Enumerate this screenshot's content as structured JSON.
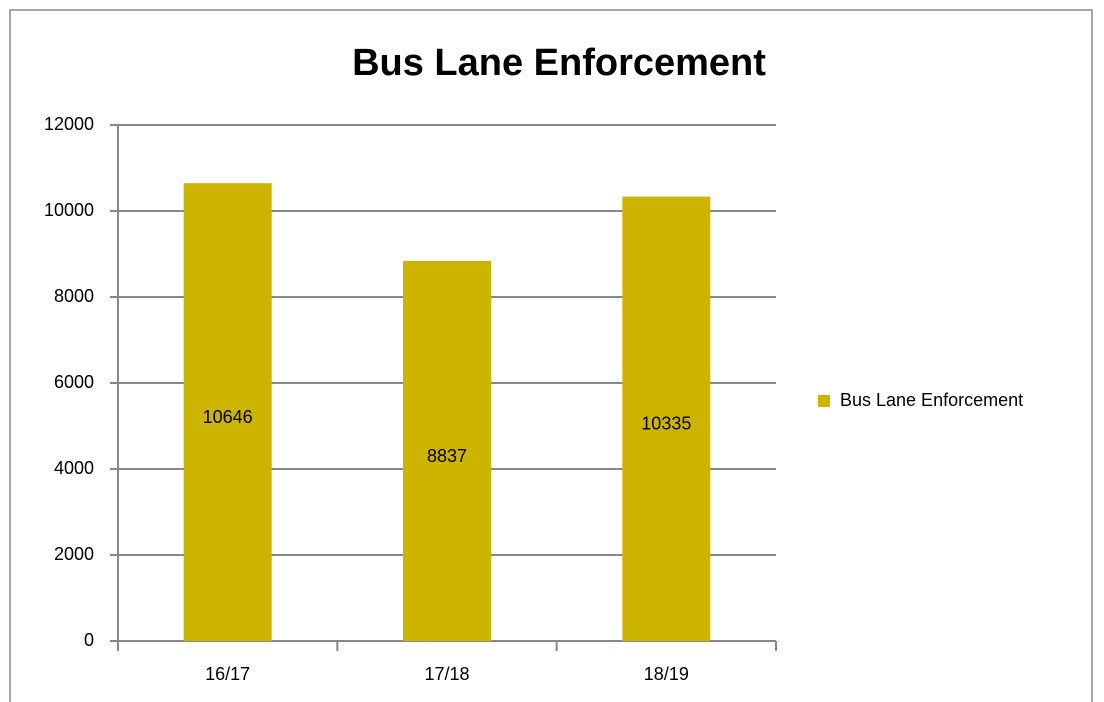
{
  "chart_data": {
    "type": "bar",
    "title": "Bus Lane Enforcement",
    "categories": [
      "16/17",
      "17/18",
      "18/19"
    ],
    "series": [
      {
        "name": "Bus Lane Enforcement",
        "color": "#ccb400",
        "values": [
          10646,
          8837,
          10335
        ]
      }
    ],
    "ylim": [
      0,
      12000
    ],
    "yticks": [
      0,
      2000,
      4000,
      6000,
      8000,
      10000,
      12000
    ],
    "grid": true,
    "legend": "right"
  }
}
